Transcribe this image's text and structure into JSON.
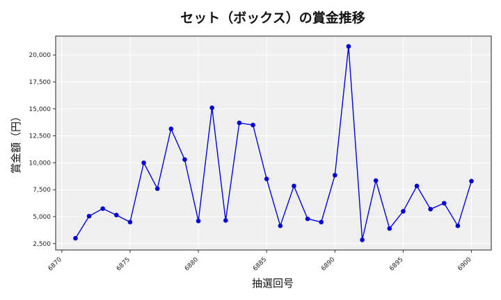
{
  "chart_data": {
    "type": "line",
    "title": "セット（ボックス）の賞金推移",
    "xlabel": "抽選回号",
    "ylabel": "賞金額（円）",
    "x": [
      6871,
      6872,
      6873,
      6874,
      6875,
      6876,
      6877,
      6878,
      6879,
      6880,
      6881,
      6882,
      6883,
      6884,
      6885,
      6886,
      6887,
      6888,
      6889,
      6890,
      6891,
      6892,
      6893,
      6894,
      6895,
      6896,
      6897,
      6898,
      6899,
      6900
    ],
    "series": [
      {
        "values": [
          3000,
          5050,
          5750,
          5150,
          4500,
          10000,
          7600,
          13150,
          10300,
          4600,
          15100,
          4650,
          13700,
          13500,
          8500,
          4150,
          7850,
          4800,
          4500,
          8850,
          20800,
          2850,
          8350,
          3900,
          5500,
          7850,
          5700,
          6250,
          4150,
          8300
        ]
      }
    ],
    "xticks": [
      "6870",
      "6875",
      "6880",
      "6885",
      "6890",
      "6895",
      "6900"
    ],
    "yticks": [
      "2,500",
      "5,000",
      "7,500",
      "10,000",
      "12,500",
      "15,000",
      "17,500",
      "20,000"
    ],
    "xlim": [
      6869.55,
      6901.45
    ],
    "ylim": [
      1910,
      21750
    ],
    "grid": true,
    "colors": {
      "line": "#0000dd",
      "marker": "#0000dd",
      "plot_bg": "#efefef",
      "grid": "#ffffff"
    }
  }
}
